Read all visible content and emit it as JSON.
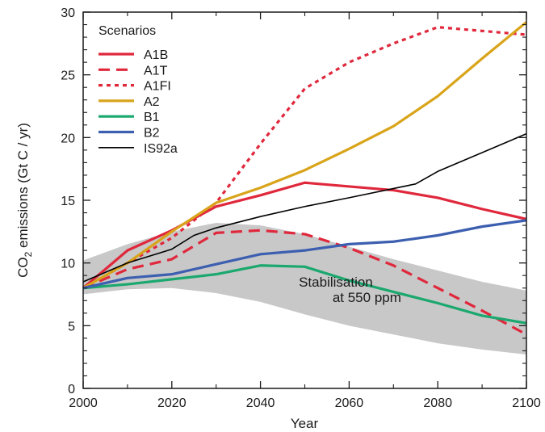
{
  "chart_data": {
    "type": "line",
    "xlabel": "Year",
    "ylabel_prefix": "CO",
    "ylabel_sub": "2",
    "ylabel_suffix": " emissions (Gt C / yr)",
    "xlim": [
      2000,
      2100
    ],
    "ylim": [
      0,
      30
    ],
    "x_ticks": [
      2000,
      2020,
      2040,
      2060,
      2080,
      2100
    ],
    "y_ticks": [
      0,
      5,
      10,
      15,
      20,
      25,
      30
    ],
    "grid": false,
    "legend": {
      "title": "Scenarios",
      "placement": "top-left"
    },
    "series": [
      {
        "name": "A1B",
        "color": "#e0283c",
        "dash": "solid",
        "points": [
          [
            2000,
            8.0
          ],
          [
            2010,
            11.0
          ],
          [
            2020,
            12.6
          ],
          [
            2030,
            14.5
          ],
          [
            2040,
            15.4
          ],
          [
            2050,
            16.4
          ],
          [
            2060,
            16.1
          ],
          [
            2070,
            15.8
          ],
          [
            2080,
            15.2
          ],
          [
            2090,
            14.3
          ],
          [
            2100,
            13.5
          ]
        ]
      },
      {
        "name": "A1T",
        "color": "#e0283c",
        "dash": "dashed",
        "points": [
          [
            2000,
            8.0
          ],
          [
            2010,
            9.5
          ],
          [
            2020,
            10.3
          ],
          [
            2030,
            12.4
          ],
          [
            2040,
            12.6
          ],
          [
            2050,
            12.3
          ],
          [
            2060,
            11.2
          ],
          [
            2070,
            9.8
          ],
          [
            2080,
            8.0
          ],
          [
            2090,
            6.2
          ],
          [
            2100,
            4.3
          ]
        ]
      },
      {
        "name": "A1FI",
        "color": "#e0283c",
        "dash": "dotted",
        "points": [
          [
            2000,
            8.0
          ],
          [
            2010,
            10.0
          ],
          [
            2020,
            12.0
          ],
          [
            2030,
            14.8
          ],
          [
            2040,
            19.5
          ],
          [
            2050,
            23.9
          ],
          [
            2060,
            26.0
          ],
          [
            2070,
            27.5
          ],
          [
            2080,
            28.8
          ],
          [
            2090,
            28.5
          ],
          [
            2100,
            28.2
          ]
        ]
      },
      {
        "name": "A2",
        "color": "#d9a41a",
        "dash": "solid",
        "points": [
          [
            2000,
            8.0
          ],
          [
            2010,
            10.0
          ],
          [
            2020,
            12.5
          ],
          [
            2030,
            14.8
          ],
          [
            2040,
            16.0
          ],
          [
            2050,
            17.4
          ],
          [
            2060,
            19.1
          ],
          [
            2070,
            20.9
          ],
          [
            2080,
            23.3
          ],
          [
            2090,
            26.3
          ],
          [
            2100,
            29.2
          ]
        ]
      },
      {
        "name": "B1",
        "color": "#1aa86e",
        "dash": "solid",
        "points": [
          [
            2000,
            8.0
          ],
          [
            2010,
            8.3
          ],
          [
            2020,
            8.7
          ],
          [
            2030,
            9.1
          ],
          [
            2040,
            9.8
          ],
          [
            2050,
            9.7
          ],
          [
            2060,
            8.6
          ],
          [
            2070,
            7.7
          ],
          [
            2080,
            6.8
          ],
          [
            2090,
            5.8
          ],
          [
            2100,
            5.2
          ]
        ]
      },
      {
        "name": "B2",
        "color": "#3d5fb0",
        "dash": "solid",
        "points": [
          [
            2000,
            8.0
          ],
          [
            2010,
            8.8
          ],
          [
            2020,
            9.1
          ],
          [
            2030,
            9.9
          ],
          [
            2040,
            10.7
          ],
          [
            2050,
            11.0
          ],
          [
            2060,
            11.5
          ],
          [
            2070,
            11.7
          ],
          [
            2080,
            12.2
          ],
          [
            2090,
            12.9
          ],
          [
            2100,
            13.4
          ]
        ]
      },
      {
        "name": "IS92a",
        "color": "#000000",
        "dash": "thin",
        "points": [
          [
            2000,
            8.5
          ],
          [
            2010,
            10.0
          ],
          [
            2020,
            11.1
          ],
          [
            2025,
            12.2
          ],
          [
            2030,
            12.8
          ],
          [
            2040,
            13.7
          ],
          [
            2050,
            14.5
          ],
          [
            2060,
            15.2
          ],
          [
            2075,
            16.3
          ],
          [
            2080,
            17.3
          ],
          [
            2090,
            18.8
          ],
          [
            2100,
            20.3
          ]
        ]
      }
    ],
    "band": {
      "color": "#c8c8c8",
      "upper": [
        [
          2000,
          10.2
        ],
        [
          2010,
          11.5
        ],
        [
          2020,
          12.5
        ],
        [
          2030,
          13.2
        ],
        [
          2040,
          13.0
        ],
        [
          2050,
          12.3
        ],
        [
          2060,
          11.3
        ],
        [
          2070,
          10.3
        ],
        [
          2080,
          9.4
        ],
        [
          2090,
          8.5
        ],
        [
          2100,
          7.8
        ]
      ],
      "lower": [
        [
          2000,
          7.5
        ],
        [
          2010,
          7.9
        ],
        [
          2020,
          8.0
        ],
        [
          2030,
          7.6
        ],
        [
          2040,
          6.9
        ],
        [
          2050,
          5.9
        ],
        [
          2060,
          5.0
        ],
        [
          2070,
          4.3
        ],
        [
          2080,
          3.6
        ],
        [
          2090,
          3.1
        ],
        [
          2100,
          2.7
        ]
      ]
    },
    "annotation": {
      "line1": "Stabilisation",
      "line2": "at 550 ppm",
      "x": 2057,
      "y1": 8.1,
      "y2": 6.9
    }
  }
}
